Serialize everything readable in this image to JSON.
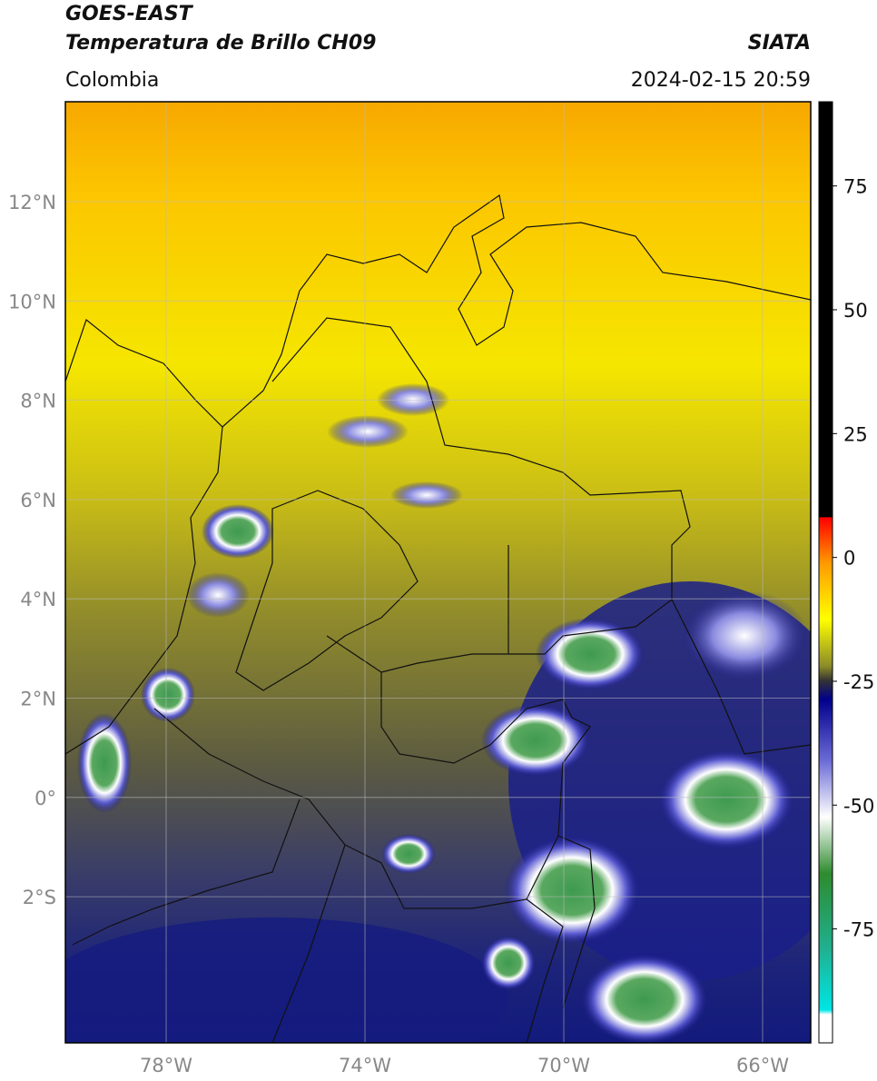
{
  "header": {
    "title": "GOES-EAST",
    "subtitle": "Temperatura de Brillo CH09",
    "region": "Colombia",
    "source": "SIATA",
    "datetime": "2024-02-15 20:59"
  },
  "map": {
    "lat_ticks": [
      "12°N",
      "10°N",
      "8°N",
      "6°N",
      "4°N",
      "2°N",
      "0°",
      "2°S"
    ],
    "lon_ticks": [
      "78°W",
      "74°W",
      "70°W",
      "66°W"
    ]
  },
  "colorbar": {
    "range": [
      -98,
      92
    ],
    "ticks": [
      75,
      50,
      25,
      0,
      -25,
      -50,
      -75
    ]
  }
}
